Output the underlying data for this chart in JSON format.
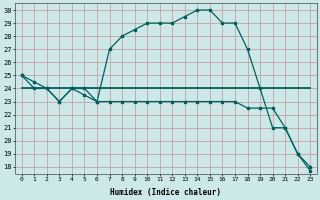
{
  "xlabel": "Humidex (Indice chaleur)",
  "bg_color": "#cce8e8",
  "grid_color": "#c8a0a0",
  "line_color": "#006060",
  "xlim": [
    -0.5,
    23.5
  ],
  "ylim": [
    17.5,
    30.5
  ],
  "yticks": [
    18,
    19,
    20,
    21,
    22,
    23,
    24,
    25,
    26,
    27,
    28,
    29,
    30
  ],
  "xticks": [
    0,
    1,
    2,
    3,
    4,
    5,
    6,
    7,
    8,
    9,
    10,
    11,
    12,
    13,
    14,
    15,
    16,
    17,
    18,
    19,
    20,
    21,
    22,
    23
  ],
  "line1_x": [
    0,
    1,
    2,
    3,
    4,
    5,
    6,
    7,
    8,
    9,
    10,
    11,
    12,
    13,
    14,
    15,
    16,
    17,
    18,
    19,
    20,
    21,
    22,
    23
  ],
  "line1_y": [
    25,
    24.5,
    24,
    23,
    24,
    24,
    23,
    27,
    28,
    28.5,
    29,
    29,
    29,
    29.5,
    30,
    30,
    29,
    29,
    27,
    24,
    21,
    21,
    19,
    17.7
  ],
  "line2_x": [
    0,
    23
  ],
  "line2_y": [
    24,
    24
  ],
  "line3_x": [
    0,
    1,
    2,
    3,
    4,
    5,
    6,
    7,
    8,
    9,
    10,
    11,
    12,
    13,
    14,
    15,
    16,
    17,
    18,
    19,
    20,
    21,
    22,
    23
  ],
  "line3_y": [
    25,
    24,
    24,
    23,
    24,
    23.5,
    23,
    23,
    23,
    23,
    23,
    23,
    23,
    23,
    23,
    23,
    23,
    23,
    22.5,
    22.5,
    22.5,
    21,
    19,
    18
  ]
}
